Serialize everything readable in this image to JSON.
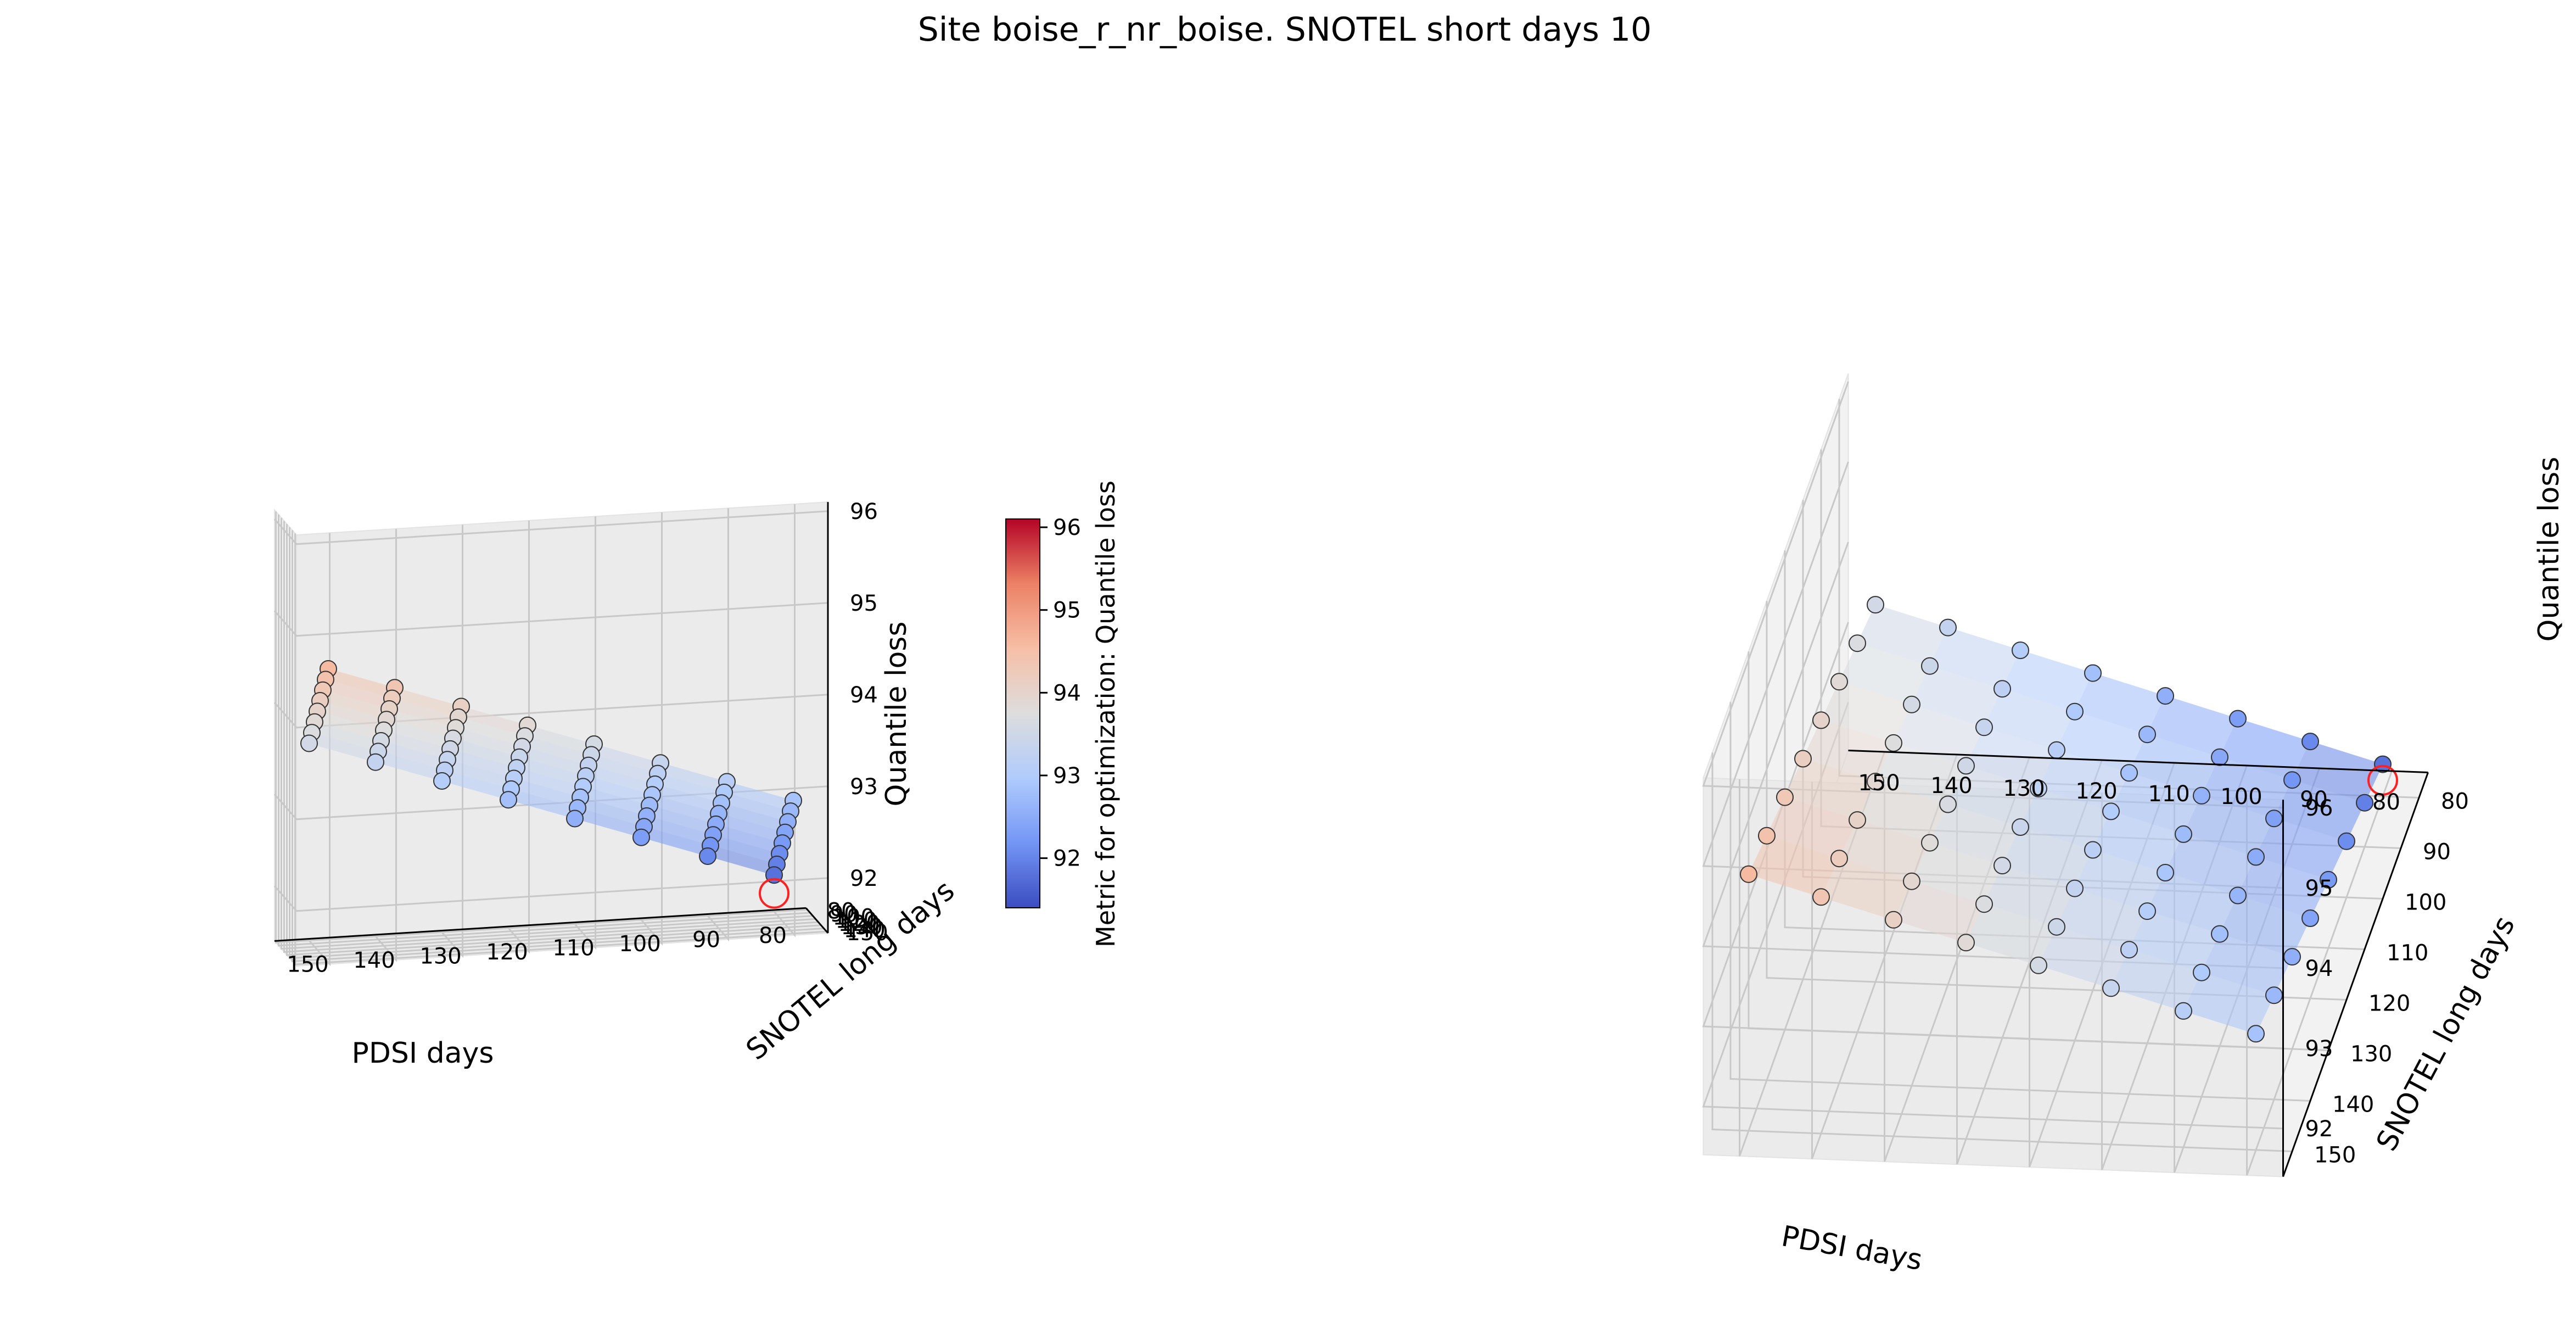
{
  "figure": {
    "title": "Site boise_r_nr_boise. SNOTEL short days 10"
  },
  "chart_data": [
    {
      "type": "scatter",
      "kind": "3d surface + scatter",
      "view": "left",
      "xlabel": "PDSI days",
      "ylabel": "SNOTEL long days",
      "zlabel": "Quantile loss",
      "x_ticks": [
        "150",
        "140",
        "130",
        "120",
        "110",
        "100",
        "90",
        "80"
      ],
      "y_ticks": [
        "80",
        "90",
        "100",
        "110",
        "120",
        "130",
        "140",
        "150"
      ],
      "z_ticks": [
        "92",
        "93",
        "94",
        "95",
        "96"
      ],
      "xlim": [
        75,
        155
      ],
      "ylim": [
        75,
        155
      ],
      "zlim": [
        91.4,
        96.1
      ],
      "x_values": [
        80,
        90,
        100,
        110,
        120,
        130,
        140,
        150
      ],
      "y_values": [
        80,
        90,
        100,
        110,
        120,
        130,
        140,
        150
      ],
      "z_model": {
        "intercept": 91.8,
        "x_slope": 0.025,
        "y_slope": 0.015,
        "base_xy": [
          80,
          80
        ]
      },
      "best_point": {
        "x": 80,
        "y": 80,
        "z": 91.6
      },
      "colormap": "coolwarm",
      "grid": true
    },
    {
      "type": "scatter",
      "kind": "3d surface + scatter",
      "view": "right",
      "xlabel": "PDSI days",
      "ylabel": "SNOTEL long days",
      "zlabel": "Quantile loss",
      "x_ticks": [
        "150",
        "140",
        "130",
        "120",
        "110",
        "100",
        "90",
        "80"
      ],
      "y_ticks": [
        "80",
        "90",
        "100",
        "110",
        "120",
        "130",
        "140",
        "150"
      ],
      "z_ticks": [
        "92",
        "93",
        "94",
        "95",
        "96"
      ],
      "xlim": [
        75,
        155
      ],
      "ylim": [
        75,
        155
      ],
      "zlim": [
        91.4,
        96.1
      ],
      "x_values": [
        80,
        90,
        100,
        110,
        120,
        130,
        140,
        150
      ],
      "y_values": [
        80,
        90,
        100,
        110,
        120,
        130,
        140,
        150
      ],
      "z_model": {
        "intercept": 91.8,
        "x_slope": 0.025,
        "y_slope": 0.015,
        "base_xy": [
          80,
          80
        ]
      },
      "best_point": {
        "x": 80,
        "y": 80,
        "z": 91.6
      },
      "colormap": "coolwarm",
      "grid": true
    }
  ],
  "colorbar": {
    "label": "Metric for optimization: Quantile loss",
    "ticks": [
      "92",
      "93",
      "94",
      "95",
      "96"
    ],
    "range": [
      91.4,
      96.1
    ],
    "colors": [
      "#3b4cc0",
      "#7396f5",
      "#b0cbfc",
      "#dddddd",
      "#f6bfa6",
      "#ec8165",
      "#b40426"
    ]
  }
}
